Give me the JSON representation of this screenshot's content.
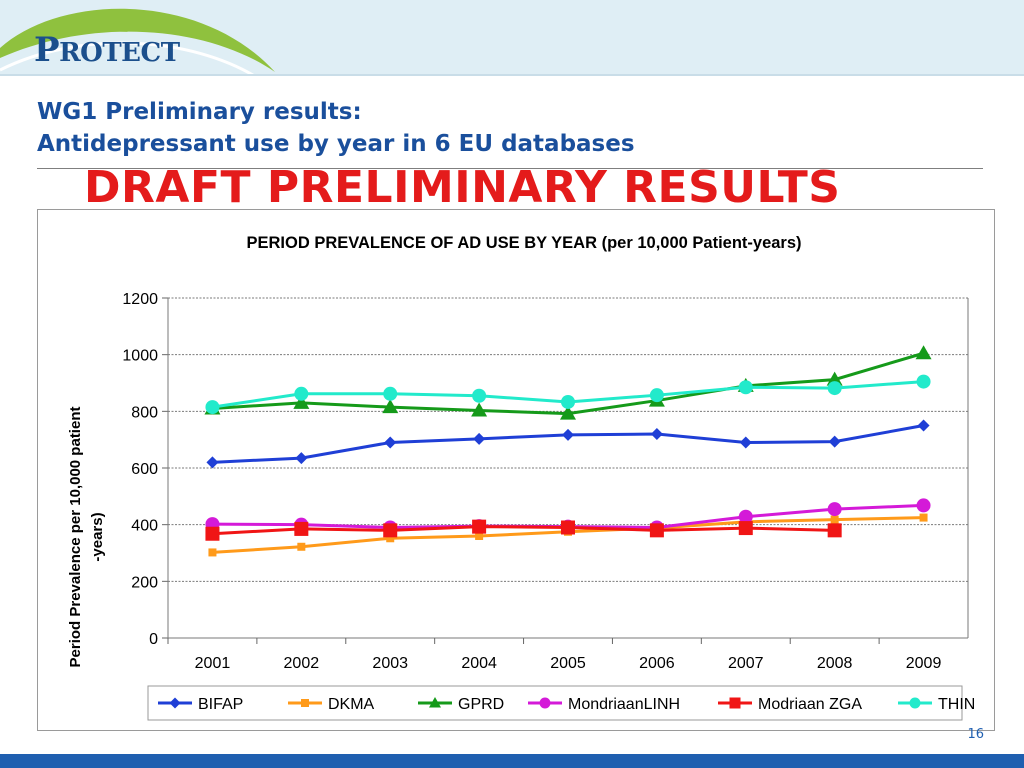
{
  "slide": {
    "logo_text_big": "P",
    "logo_text_rest": "ROTECT",
    "title_line1": "WG1 Preliminary results:",
    "title_line2": "Antidepressant use by year in 6 EU databases",
    "draft_banner": "DRAFT PRELIMINARY RESULTS",
    "page_number": "16",
    "colors": {
      "header_band": "#dfeef5",
      "title": "#1a4f9c",
      "draft": "#e41b1b",
      "footer": "#1f5fb0"
    }
  },
  "chart_data": {
    "type": "line",
    "title": "PERIOD PREVALENCE OF AD USE BY YEAR (per 10,000 Patient-years)",
    "ylabel_line1": "Period Prevalence per  10,000 patient",
    "ylabel_line2": "-years)",
    "xlabel": "",
    "ylim": [
      0,
      1200
    ],
    "yticks": [
      0,
      200,
      400,
      600,
      800,
      1000,
      1200
    ],
    "grid": true,
    "legend_position": "bottom",
    "categories": [
      "2001",
      "2002",
      "2003",
      "2004",
      "2005",
      "2006",
      "2007",
      "2008",
      "2009"
    ],
    "series": [
      {
        "name": "BIFAP",
        "color": "#1f3fd6",
        "marker": "diamond",
        "values": [
          620,
          635,
          690,
          703,
          717,
          720,
          690,
          693,
          750
        ]
      },
      {
        "name": "DKMA",
        "color": "#ff9a1a",
        "marker": "square-small",
        "values": [
          302,
          322,
          352,
          360,
          375,
          388,
          410,
          418,
          425
        ]
      },
      {
        "name": "GPRD",
        "color": "#159a1a",
        "marker": "triangle",
        "values": [
          810,
          830,
          815,
          803,
          792,
          838,
          890,
          912,
          1005
        ]
      },
      {
        "name": "MondriaanLINH",
        "color": "#d41ad8",
        "marker": "circle",
        "values": [
          402,
          400,
          390,
          395,
          393,
          390,
          428,
          455,
          468
        ]
      },
      {
        "name": "Modriaan ZGA",
        "color": "#f01515",
        "marker": "square",
        "values": [
          368,
          385,
          380,
          393,
          390,
          380,
          388,
          380,
          null
        ]
      },
      {
        "name": "THIN",
        "color": "#22eacb",
        "marker": "circle",
        "values": [
          815,
          862,
          862,
          855,
          833,
          857,
          885,
          882,
          905
        ]
      }
    ]
  }
}
